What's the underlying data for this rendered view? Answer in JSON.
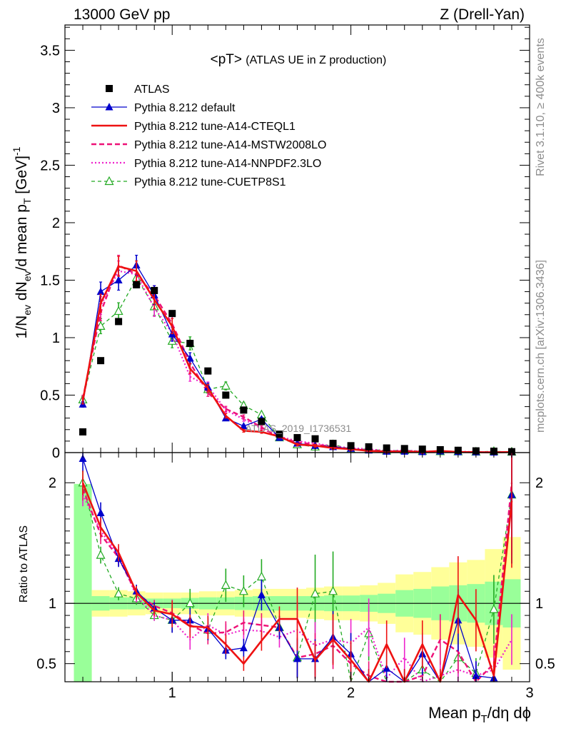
{
  "header": {
    "energy_label": "13000 GeV pp",
    "process_label": "Z (Drell-Yan)",
    "side_label_top": "Rivet 3.1.10, ≥ 400k events",
    "side_label_bottom": "mcplots.cern.ch [arXiv:1306.3436]"
  },
  "colors": {
    "data": "#000000",
    "default": "#0000cc",
    "cteql1": "#ee1111",
    "mstw": "#ee1177",
    "nnpdf": "#ee22cc",
    "cuetp8s1": "#22aa22",
    "band_inner": "#99ff99",
    "band_outer": "#ffff99"
  },
  "chart_data": [
    {
      "type": "line",
      "panel": "main",
      "title": "<pT>",
      "subtitle": "(ATLAS UE in Z production)",
      "ylabel_parts": [
        "1/N",
        "ev",
        " dN",
        "ev",
        "/d mean p",
        "T",
        " [GeV]",
        "-1"
      ],
      "xlim": [
        0.4,
        3.0
      ],
      "ylim": [
        0,
        3.72
      ],
      "yticks": [
        0,
        0.5,
        1,
        1.5,
        2,
        2.5,
        3,
        3.5
      ],
      "ytick_labels": [
        "0",
        "0.5",
        "1",
        "1.5",
        "2",
        "2.5",
        "3",
        "3.5"
      ],
      "watermark": "ATLAS_2019_I1736531",
      "legend_position": "top-left",
      "x": [
        0.5,
        0.6,
        0.7,
        0.8,
        0.9,
        1.0,
        1.1,
        1.2,
        1.3,
        1.4,
        1.5,
        1.6,
        1.7,
        1.8,
        1.9,
        2.0,
        2.1,
        2.2,
        2.3,
        2.4,
        2.5,
        2.6,
        2.7,
        2.8,
        2.9
      ],
      "series": [
        {
          "name": "ATLAS",
          "key": "data",
          "style": "marker-square",
          "values": [
            0.18,
            0.8,
            1.14,
            1.46,
            1.41,
            1.21,
            0.95,
            0.71,
            0.5,
            0.37,
            0.27,
            0.16,
            0.13,
            0.12,
            0.08,
            0.06,
            0.05,
            0.04,
            0.035,
            0.03,
            0.025,
            0.02,
            0.015,
            0.012,
            0.008
          ]
        },
        {
          "name": "Pythia 8.212 default",
          "key": "default",
          "style": "line-triangle",
          "values": [
            0.42,
            1.4,
            1.5,
            1.63,
            1.37,
            1.03,
            0.82,
            0.57,
            0.3,
            0.23,
            0.29,
            0.13,
            0.08,
            0.06,
            0.05,
            0.035,
            0.02,
            0.01,
            0.01,
            0.006,
            0.012,
            0.006,
            0.004,
            0.002,
            0.005
          ]
        },
        {
          "name": "Pythia 8.212 tune-A14-CTEQL1",
          "key": "cteql1",
          "style": "thick-solid",
          "values": [
            0.45,
            1.3,
            1.62,
            1.58,
            1.33,
            1.1,
            0.73,
            0.56,
            0.32,
            0.19,
            0.18,
            0.14,
            0.07,
            0.06,
            0.04,
            0.03,
            0.015,
            0.008,
            0.01,
            0.006,
            0.014,
            0.005,
            0.004,
            0.002,
            0.005
          ]
        },
        {
          "name": "Pythia 8.212 tune-A14-MSTW2008LO",
          "key": "mstw",
          "style": "dashed",
          "values": [
            0.47,
            1.22,
            1.63,
            1.55,
            1.37,
            1.12,
            0.78,
            0.52,
            0.38,
            0.31,
            0.22,
            0.13,
            0.09,
            0.07,
            0.05,
            0.03,
            0.02,
            0.01,
            0.012,
            0.007,
            0.012,
            0.006,
            0.004,
            0.003,
            0.006
          ]
        },
        {
          "name": "Pythia 8.212 tune-A14-NNPDF2.3LO",
          "key": "nnpdf",
          "style": "dotted",
          "values": [
            0.44,
            1.28,
            1.58,
            1.55,
            1.26,
            1.04,
            0.66,
            0.58,
            0.37,
            0.29,
            0.21,
            0.14,
            0.1,
            0.08,
            0.055,
            0.04,
            0.03,
            0.015,
            0.02,
            0.01,
            0.01,
            0.009,
            0.006,
            0.005,
            0.006
          ]
        },
        {
          "name": "Pythia 8.212 tune-CUETP8S1",
          "key": "cuetp8s1",
          "style": "dashed-open-triangle",
          "values": [
            0.46,
            1.1,
            1.23,
            1.52,
            1.27,
            0.97,
            0.95,
            0.55,
            0.58,
            0.41,
            0.33,
            0.13,
            0.07,
            0.05,
            0.07,
            0.03,
            0.03,
            0.015,
            0.02,
            0.012,
            0.01,
            0.008,
            0.006,
            0.011,
            0.006
          ]
        }
      ]
    },
    {
      "type": "line",
      "panel": "ratio",
      "ylabel": "Ratio to ATLAS",
      "xlabel_parts": [
        "Mean p",
        "T",
        "/dη dϕ"
      ],
      "xlim": [
        0.4,
        3.0
      ],
      "ylim": [
        0.35,
        2.25
      ],
      "xticks": [
        1,
        2,
        3
      ],
      "xtick_labels": [
        "1",
        "2",
        "3"
      ],
      "yticks": [
        0.5,
        1,
        2
      ],
      "ytick_labels": [
        "0.5",
        "1",
        "2"
      ],
      "reference_line": 1,
      "band_x_edges": [
        0.45,
        0.55,
        0.65,
        0.75,
        0.85,
        0.95,
        1.05,
        1.15,
        1.25,
        1.35,
        1.45,
        1.55,
        1.65,
        1.75,
        1.85,
        1.95,
        2.05,
        2.15,
        2.25,
        2.35,
        2.45,
        2.55,
        2.65,
        2.75,
        2.85,
        2.95
      ],
      "band_inner_halfwidth": [
        0.99,
        0.06,
        0.05,
        0.05,
        0.04,
        0.04,
        0.045,
        0.05,
        0.05,
        0.055,
        0.06,
        0.06,
        0.06,
        0.06,
        0.065,
        0.065,
        0.07,
        0.08,
        0.11,
        0.12,
        0.14,
        0.15,
        0.16,
        0.18,
        0.2
      ],
      "band_outer_halfwidth": [
        0.99,
        0.11,
        0.11,
        0.1,
        0.09,
        0.09,
        0.09,
        0.1,
        0.1,
        0.11,
        0.12,
        0.12,
        0.12,
        0.13,
        0.14,
        0.14,
        0.15,
        0.17,
        0.24,
        0.26,
        0.3,
        0.34,
        0.36,
        0.45,
        0.55
      ],
      "series": [
        {
          "key": "default",
          "values": [
            2.2,
            1.75,
            1.37,
            1.1,
            0.96,
            0.86,
            0.86,
            0.79,
            0.61,
            0.63,
            1.07,
            0.8,
            0.54,
            0.54,
            0.72,
            0.58,
            0.35,
            0.46,
            0.35,
            0.58,
            0.32,
            0.86,
            0.4,
            0.38,
            1.9
          ]
        },
        {
          "key": "cteql1",
          "values": [
            2.0,
            1.63,
            1.42,
            1.09,
            0.94,
            0.91,
            0.81,
            0.8,
            0.66,
            0.5,
            0.69,
            0.87,
            0.87,
            0.53,
            0.7,
            0.53,
            0.35,
            0.66,
            0.35,
            0.66,
            0.35,
            1.07,
            0.86,
            0.4,
            1.85
          ]
        },
        {
          "key": "mstw",
          "values": [
            1.95,
            1.57,
            1.38,
            1.08,
            0.98,
            0.92,
            0.82,
            0.75,
            0.76,
            0.84,
            0.82,
            0.8,
            0.55,
            0.58,
            0.65,
            0.5,
            0.4,
            0.35,
            0.35,
            0.4,
            0.7,
            0.6,
            0.35,
            0.5,
            2.0
          ]
        },
        {
          "key": "nnpdf",
          "values": [
            1.9,
            1.6,
            1.4,
            1.06,
            0.9,
            0.86,
            0.7,
            0.82,
            0.74,
            0.78,
            0.77,
            0.72,
            0.78,
            0.65,
            0.7,
            0.67,
            0.8,
            0.38,
            0.55,
            0.35,
            0.4,
            0.45,
            0.4,
            0.45,
            0.7
          ]
        },
        {
          "key": "cuetp8s1",
          "values": [
            2.0,
            1.4,
            1.08,
            1.04,
            0.9,
            0.86,
            1.0,
            0.78,
            1.15,
            1.1,
            1.22,
            0.8,
            0.55,
            1.08,
            1.1,
            0.35,
            0.75,
            0.35,
            0.35,
            0.45,
            0.35,
            0.55,
            0.42,
            0.95,
            1.9
          ]
        }
      ]
    }
  ]
}
